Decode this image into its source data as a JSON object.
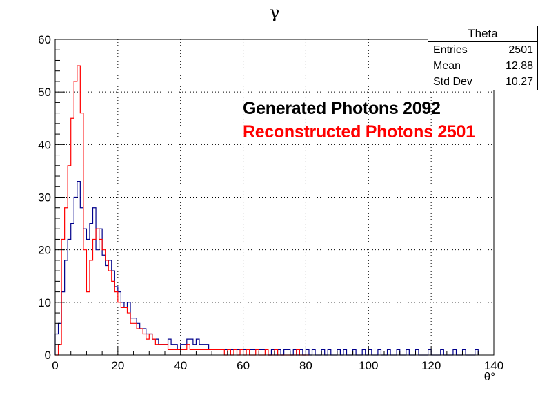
{
  "chart_data": {
    "type": "histogram",
    "title": "γ",
    "xlabel": "θ°",
    "ylabel": "",
    "xlim": [
      0,
      140
    ],
    "ylim": [
      0,
      60
    ],
    "xticks": [
      0,
      20,
      40,
      60,
      80,
      100,
      120,
      140
    ],
    "yticks": [
      0,
      10,
      20,
      30,
      40,
      50,
      60
    ],
    "grid": true,
    "bin_width": 0.35,
    "stats_box": {
      "title": "Theta",
      "rows": [
        {
          "label": "Entries",
          "value": "2501"
        },
        {
          "label": "Mean",
          "value": "12.88"
        },
        {
          "label": "Std Dev",
          "value": "10.27"
        }
      ]
    },
    "legend": [
      {
        "text": "Generated Photons 2092",
        "color": "#000000"
      },
      {
        "text": "Reconstructed Photons 2501",
        "color": "#ff0000"
      }
    ],
    "series": [
      {
        "color": "#00008b",
        "x": [
          0.5,
          1.5,
          2.5,
          3.5,
          4.5,
          5.5,
          6.5,
          7.5,
          8.5,
          9.5,
          10.5,
          11.5,
          12.5,
          13.5,
          14.5,
          15.5,
          16.5,
          17.5,
          18.5,
          19.5,
          20.5,
          21.5,
          22.5,
          23.5,
          24.5,
          25.5,
          26.5,
          27.5,
          28.5,
          29.5,
          30.5,
          31.5,
          32.5,
          33.5,
          34.5,
          35.5,
          36.5,
          37.5,
          38.5,
          39.5,
          40.5,
          41.5,
          42.5,
          43.5,
          44.5,
          45.5,
          46.5,
          47.5,
          48.5,
          49.5,
          50.5,
          51.5,
          52.5,
          53.5,
          54.5,
          55.5,
          56.5,
          57.5,
          58.5,
          59.5,
          60.5,
          61.5,
          62.5,
          63.5,
          64.5,
          65.5,
          66.5,
          67.5,
          68.5,
          69.5,
          70.5,
          71.5,
          72.5,
          73.5,
          74.5,
          75.5,
          76.5,
          77.5,
          78.5,
          79.5,
          80.5,
          81.5,
          82.5,
          83.5,
          84.5,
          85.5,
          86.5,
          87.5,
          88.5,
          89.5,
          90.5,
          91.5,
          92.5,
          93.5,
          94.5,
          95.5,
          96.5,
          97.5,
          98.5,
          99.5,
          100.5,
          101.5,
          102.5,
          103.5,
          104.5,
          105.5,
          106.5,
          107.5,
          108.5,
          109.5,
          110.5,
          111.5,
          112.5,
          113.5,
          114.5,
          115.5,
          116.5,
          117.5,
          118.5,
          119.5,
          120.5,
          121.5,
          122.5,
          123.5,
          124.5,
          125.5,
          126.5,
          127.5,
          128.5,
          129.5,
          130.5,
          131.5,
          132.5,
          133.5,
          134.5
        ],
        "values": [
          4,
          6,
          12,
          18,
          22,
          25,
          30,
          33,
          28,
          24,
          22,
          25,
          28,
          20,
          24,
          19,
          17,
          18,
          16,
          13,
          12,
          10,
          9,
          10,
          7,
          7,
          6,
          5,
          5,
          4,
          4,
          3,
          3,
          2,
          2,
          2,
          3,
          2,
          2,
          1,
          2,
          2,
          3,
          3,
          2,
          3,
          2,
          2,
          2,
          1,
          1,
          1,
          1,
          1,
          1,
          1,
          1,
          1,
          1,
          1,
          1,
          1,
          1,
          1,
          1,
          1,
          1,
          1,
          0,
          1,
          0,
          1,
          0,
          1,
          1,
          0,
          1,
          0,
          1,
          0,
          1,
          0,
          1,
          0,
          0,
          1,
          0,
          1,
          0,
          0,
          1,
          0,
          1,
          0,
          0,
          1,
          0,
          0,
          1,
          0,
          1,
          0,
          0,
          1,
          0,
          0,
          1,
          0,
          0,
          1,
          0,
          0,
          1,
          0,
          0,
          1,
          0,
          0,
          0,
          1,
          0,
          0,
          0,
          1,
          0,
          0,
          0,
          1,
          0,
          0,
          1,
          0,
          0,
          0,
          1
        ]
      },
      {
        "color": "#ff0000",
        "x": [
          0.5,
          1.5,
          2.5,
          3.5,
          4.5,
          5.5,
          6.5,
          7.5,
          8.5,
          9.5,
          10.5,
          11.5,
          12.5,
          13.5,
          14.5,
          15.5,
          16.5,
          17.5,
          18.5,
          19.5,
          20.5,
          21.5,
          22.5,
          23.5,
          24.5,
          25.5,
          26.5,
          27.5,
          28.5,
          29.5,
          30.5,
          31.5,
          32.5,
          33.5,
          34.5,
          35.5,
          36.5,
          37.5,
          38.5,
          39.5,
          40.5,
          41.5,
          42.5,
          43.5,
          44.5,
          45.5,
          46.5,
          47.5,
          48.5,
          49.5,
          50.5,
          51.5,
          52.5,
          53.5,
          54.5,
          55.5,
          56.5,
          57.5,
          58.5,
          59.5,
          60.5,
          61.5,
          62.5,
          63.5,
          64.5,
          65.5,
          66.5,
          67.5,
          68.5,
          69.5,
          70.5,
          71.5,
          72.5,
          73.5,
          74.5,
          75.5,
          76.5,
          77.5,
          78.5,
          79.5,
          80.5
        ],
        "values": [
          0,
          2,
          22,
          28,
          36,
          45,
          52,
          55,
          46,
          20,
          12,
          18,
          22,
          24,
          22,
          20,
          18,
          16,
          14,
          12,
          10,
          9,
          9,
          8,
          6,
          6,
          5,
          5,
          4,
          3,
          4,
          3,
          2,
          2,
          2,
          2,
          1,
          1,
          1,
          1,
          1,
          1,
          2,
          1,
          1,
          1,
          1,
          1,
          1,
          1,
          1,
          1,
          1,
          1,
          0,
          1,
          0,
          1,
          0,
          1,
          0,
          1,
          0,
          0,
          1,
          0,
          0,
          1,
          0,
          0,
          1,
          0,
          0,
          0,
          0,
          0,
          0,
          1,
          0,
          0,
          0
        ]
      }
    ]
  }
}
